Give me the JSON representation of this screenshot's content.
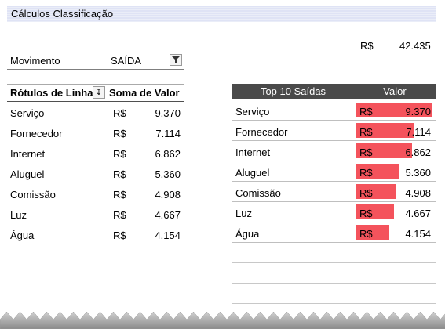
{
  "title": "Cálculos Classificação",
  "total": {
    "currency": "R$",
    "value": "42.435"
  },
  "filter": {
    "label": "Movimento",
    "value": "SAÍDA"
  },
  "pivot": {
    "header_row_labels": "Rótulos de Linha",
    "header_sum": "Soma de Valor",
    "rows": [
      {
        "name": "Serviço",
        "currency": "R$",
        "value": "9.370"
      },
      {
        "name": "Fornecedor",
        "currency": "R$",
        "value": "7.114"
      },
      {
        "name": "Internet",
        "currency": "R$",
        "value": "6.862"
      },
      {
        "name": "Aluguel",
        "currency": "R$",
        "value": "5.360"
      },
      {
        "name": "Comissão",
        "currency": "R$",
        "value": "4.908"
      },
      {
        "name": "Luz",
        "currency": "R$",
        "value": "4.667"
      },
      {
        "name": "Água",
        "currency": "R$",
        "value": "4.154"
      }
    ]
  },
  "top10": {
    "header_name": "Top 10 Saídas",
    "header_value": "Valor",
    "bar_color": "#f4535c",
    "rows": [
      {
        "name": "Serviço",
        "currency": "R$",
        "value": "9.370",
        "amount": 9370
      },
      {
        "name": "Fornecedor",
        "currency": "R$",
        "value": "7.114",
        "amount": 7114
      },
      {
        "name": "Internet",
        "currency": "R$",
        "value": "6.862",
        "amount": 6862
      },
      {
        "name": "Aluguel",
        "currency": "R$",
        "value": "5.360",
        "amount": 5360
      },
      {
        "name": "Comissão",
        "currency": "R$",
        "value": "4.908",
        "amount": 4908
      },
      {
        "name": "Luz",
        "currency": "R$",
        "value": "4.667",
        "amount": 4667
      },
      {
        "name": "Água",
        "currency": "R$",
        "value": "4.154",
        "amount": 4154
      }
    ],
    "empty_rows": 3
  }
}
